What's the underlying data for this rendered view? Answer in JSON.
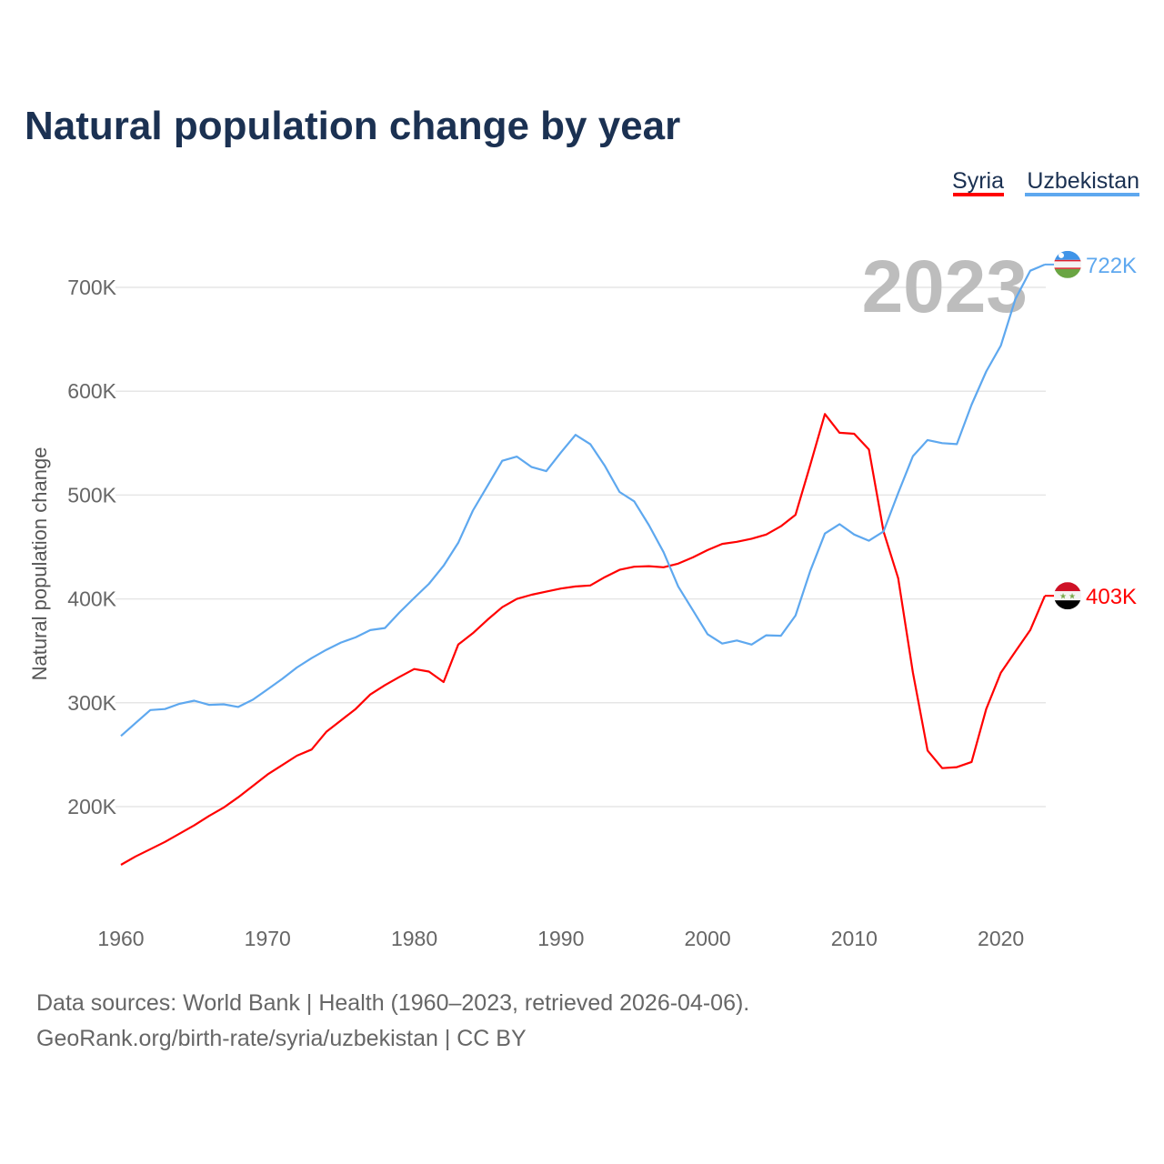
{
  "chart_data": {
    "type": "line",
    "title": "Natural population change by year",
    "xlabel": "",
    "ylabel": "Natural population change",
    "xlim": [
      1960,
      2023
    ],
    "ylim": [
      100000,
      750000
    ],
    "x_ticks": [
      1960,
      1970,
      1980,
      1990,
      2000,
      2010,
      2020
    ],
    "y_ticks": [
      200000,
      300000,
      400000,
      500000,
      600000,
      700000
    ],
    "y_tick_labels": [
      "200K",
      "300K",
      "400K",
      "500K",
      "600K",
      "700K"
    ],
    "grid": true,
    "legend_position": "top-right",
    "current_year_label": "2023",
    "x": [
      1960,
      1961,
      1962,
      1963,
      1964,
      1965,
      1966,
      1967,
      1968,
      1969,
      1970,
      1971,
      1972,
      1973,
      1974,
      1975,
      1976,
      1977,
      1978,
      1979,
      1980,
      1981,
      1982,
      1983,
      1984,
      1985,
      1986,
      1987,
      1988,
      1989,
      1990,
      1991,
      1992,
      1993,
      1994,
      1995,
      1996,
      1997,
      1998,
      1999,
      2000,
      2001,
      2002,
      2003,
      2004,
      2005,
      2006,
      2007,
      2008,
      2009,
      2010,
      2011,
      2012,
      2013,
      2014,
      2015,
      2016,
      2017,
      2018,
      2019,
      2020,
      2021,
      2022,
      2023
    ],
    "series": [
      {
        "name": "Syria",
        "color": "#ff0000",
        "end_label": "403K",
        "flag": "syria-flag",
        "values": [
          144000,
          152000,
          159000,
          166000,
          174000,
          182000,
          191000,
          199000,
          209000,
          220000,
          231000,
          240000,
          249000,
          255000,
          272000,
          283000,
          294000,
          308000,
          317000,
          325000,
          332500,
          330000,
          320000,
          356000,
          367000,
          380000,
          392000,
          400000,
          404000,
          407000,
          410000,
          412000,
          413000,
          421000,
          428000,
          431000,
          431500,
          430500,
          434000,
          440000,
          447000,
          453000,
          455000,
          458000,
          462000,
          470000,
          481000,
          529000,
          578000,
          560000,
          559000,
          544000,
          465000,
          420000,
          329000,
          254000,
          237000,
          238000,
          243000,
          294000,
          329000,
          349500,
          370000,
          403000
        ]
      },
      {
        "name": "Uzbekistan",
        "color": "#5ea8ef",
        "end_label": "722K",
        "flag": "uzbekistan-flag",
        "values": [
          268000,
          280500,
          293000,
          294000,
          299000,
          302000,
          298000,
          298500,
          296000,
          303000,
          313000,
          323000,
          334000,
          343000,
          351000,
          358000,
          363000,
          370000,
          372000,
          387000,
          401000,
          414500,
          432000,
          454000,
          485000,
          509000,
          533000,
          537000,
          527000,
          523000,
          541000,
          558000,
          549000,
          528000,
          503000,
          494000,
          471000,
          445000,
          412000,
          389000,
          366000,
          357000,
          360000,
          356000,
          365000,
          364500,
          384000,
          427000,
          463000,
          472000,
          462000,
          456000,
          465000,
          502000,
          537500,
          553000,
          550000,
          549000,
          587000,
          619000,
          644000,
          689000,
          716000,
          722000
        ]
      }
    ]
  },
  "footer": {
    "line1": "Data sources: World Bank | Health (1960–2023, retrieved 2026-04-06).",
    "line2": "GeoRank.org/birth-rate/syria/uzbekistan | CC BY"
  }
}
